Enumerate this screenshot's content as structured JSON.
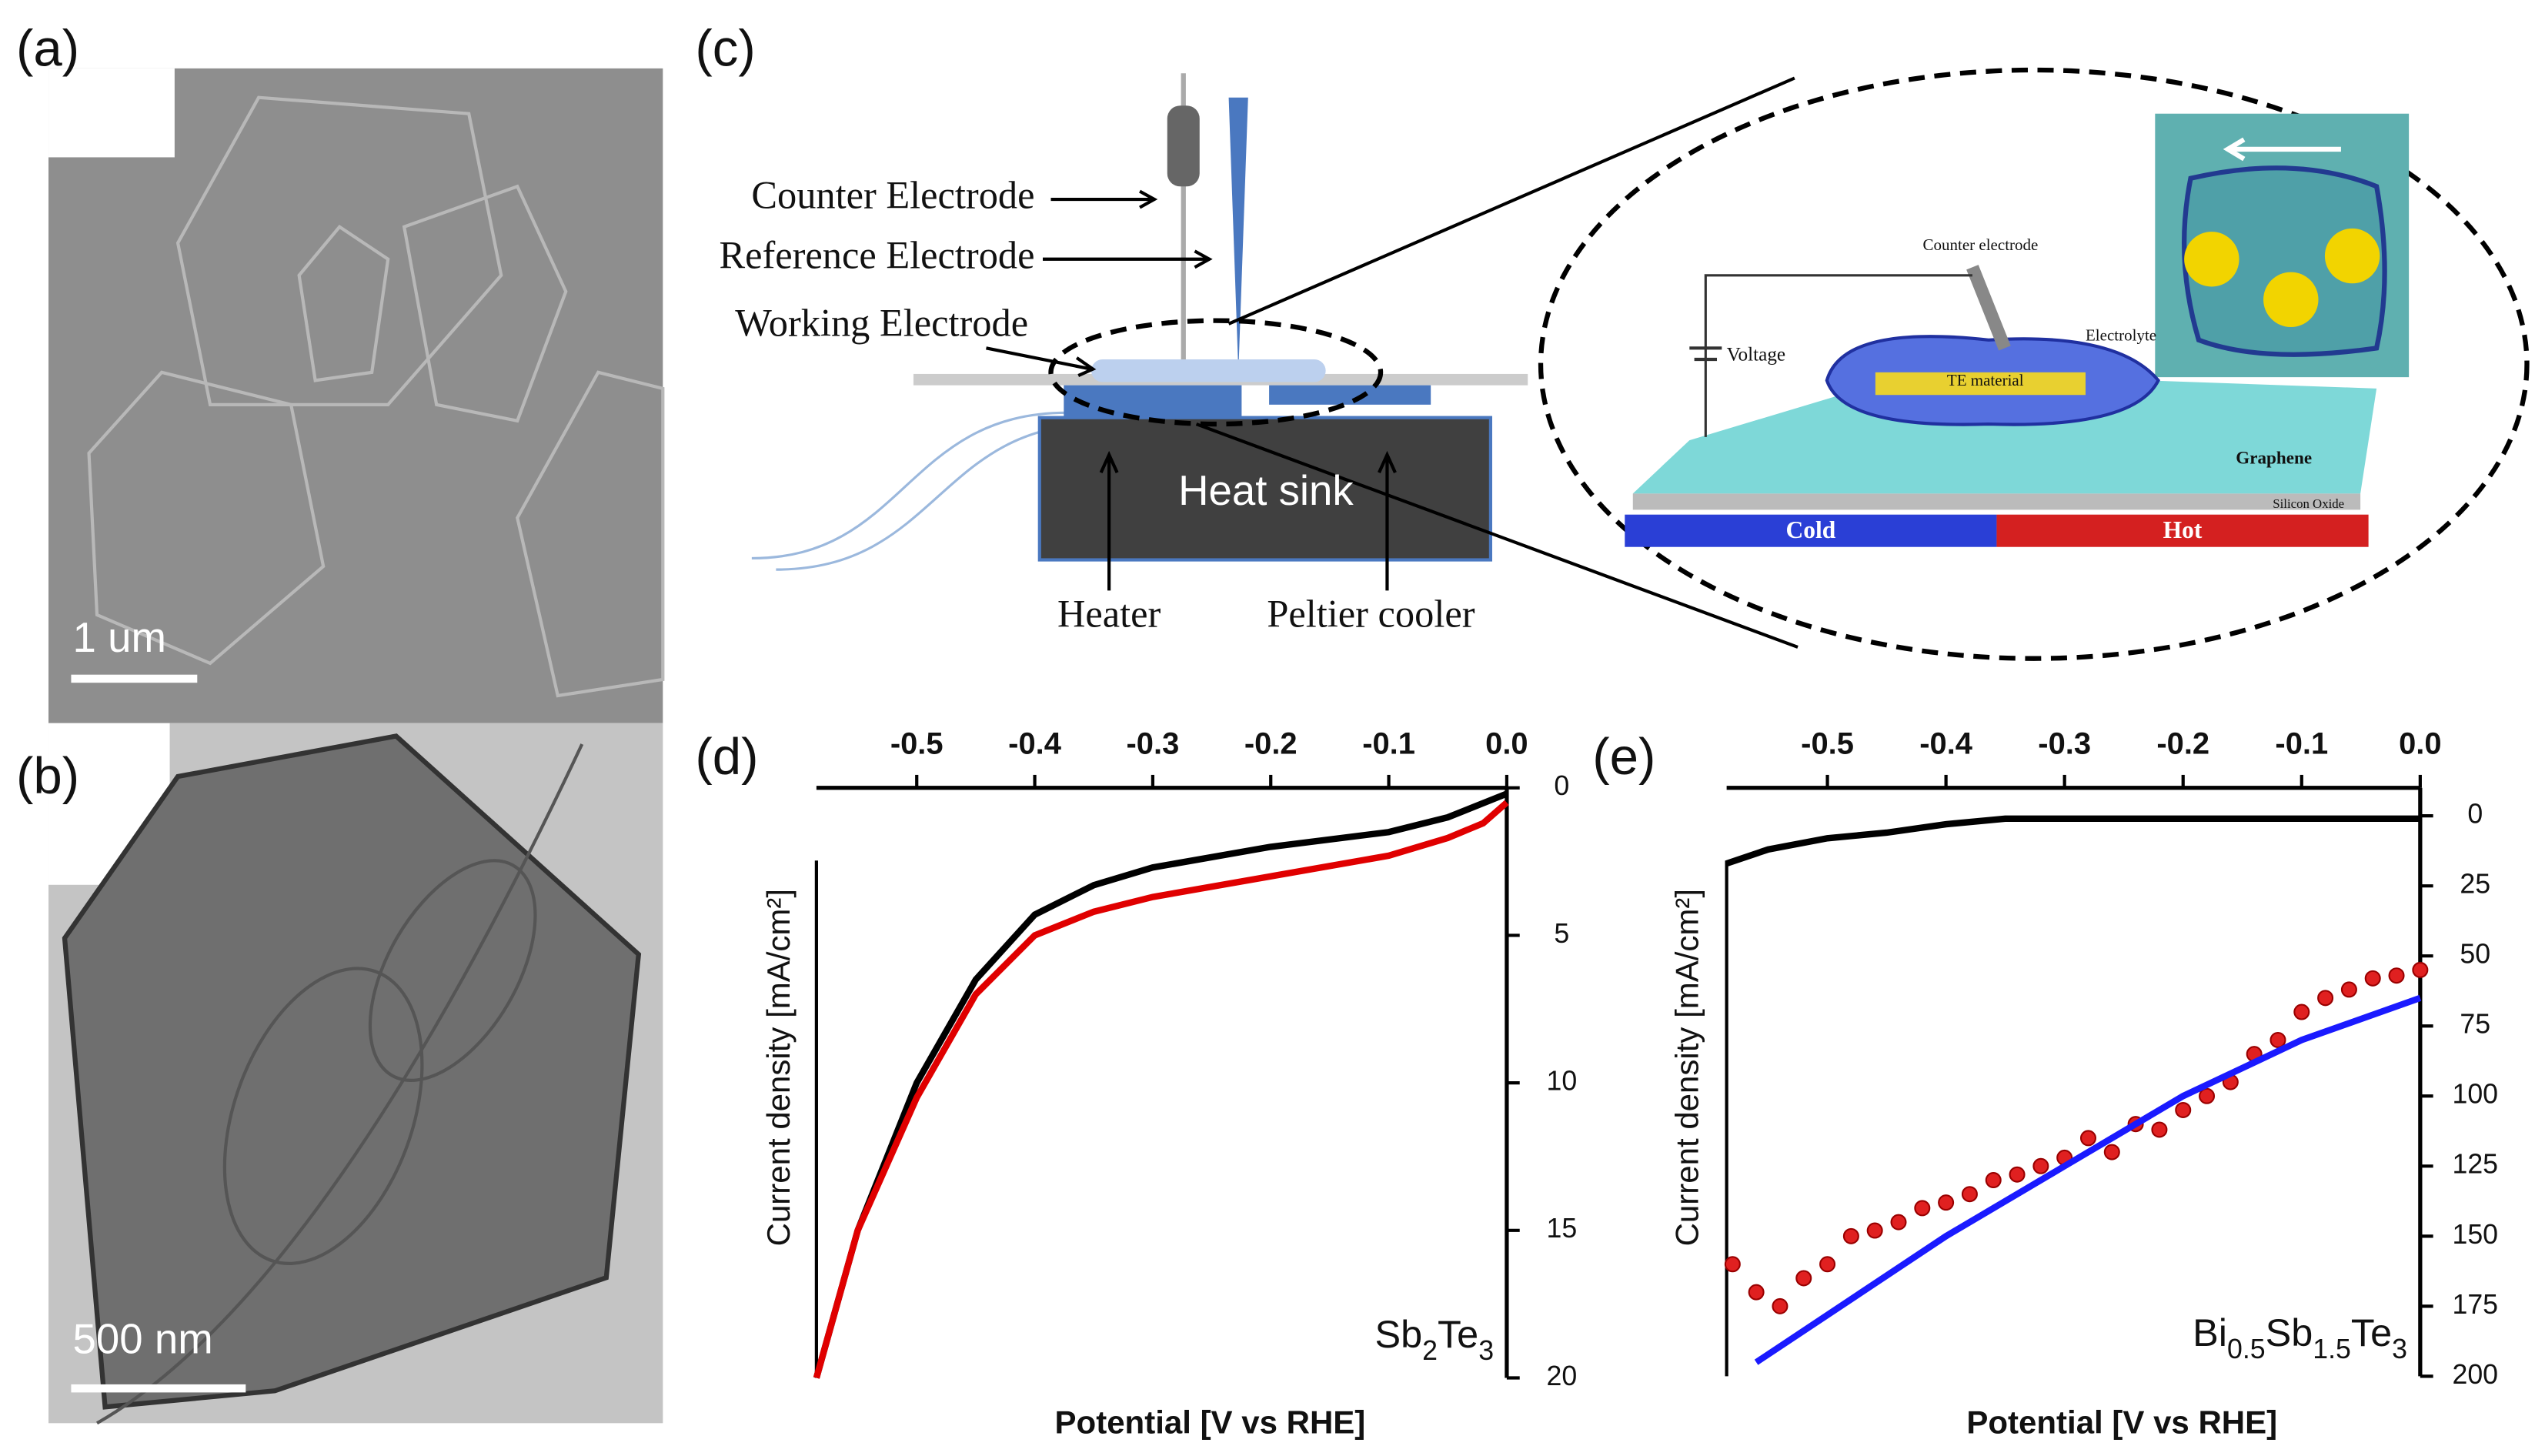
{
  "panels": {
    "a": {
      "label": "(a)",
      "scale_bar": "1 um"
    },
    "b": {
      "label": "(b)",
      "scale_bar": "500 nm"
    },
    "c": {
      "label": "(c)",
      "counter_electrode": "Counter Electrode",
      "reference_electrode": "Reference Electrode",
      "working_electrode": "Working Electrode",
      "heat_sink": "Heat sink",
      "heater": "Heater",
      "peltier": "Peltier cooler",
      "inset_counter": "Counter electrode",
      "electrolyte": "Electrolyte",
      "voltage": "Voltage",
      "te_material": "TE material",
      "graphene": "Graphene",
      "silicon_oxide": "Silicon Oxide",
      "cold": "Cold",
      "hot": "Hot"
    }
  },
  "chart_data": [
    {
      "type": "scatter",
      "panel_label": "(d)",
      "xlabel": "Potential [V vs RHE]",
      "ylabel": "Current density [mA/cm²]",
      "annotation_parts": [
        "Sb",
        "2",
        "Te",
        "3"
      ],
      "xaxis_side": "top",
      "yaxis_side": "right",
      "yaxis_reversed": true,
      "xlim": [
        -0.585,
        0
      ],
      "xticks": [
        -0.5,
        -0.4,
        -0.3,
        -0.2,
        -0.1,
        {
          "value": 0,
          "label": "0.0"
        }
      ],
      "ylim": [
        0,
        20
      ],
      "yticks": [
        0,
        5,
        10,
        15,
        20
      ],
      "series": [
        {
          "color": "#000000",
          "kind": "line",
          "x": [
            -0.585,
            -0.55,
            -0.5,
            -0.45,
            -0.4,
            -0.35,
            -0.3,
            -0.2,
            -0.1,
            -0.05,
            0
          ],
          "values": [
            20,
            15,
            10,
            6.5,
            4.3,
            3.3,
            2.7,
            2.0,
            1.5,
            1.0,
            0.2
          ]
        },
        {
          "color": "#e00000",
          "kind": "line",
          "x": [
            -0.585,
            -0.55,
            -0.5,
            -0.45,
            -0.4,
            -0.35,
            -0.3,
            -0.2,
            -0.1,
            -0.05,
            -0.02,
            0
          ],
          "values": [
            20,
            15,
            10.5,
            7,
            5,
            4.2,
            3.7,
            3.0,
            2.3,
            1.7,
            1.2,
            0.5
          ]
        }
      ]
    },
    {
      "type": "scatter",
      "panel_label": "(e)",
      "xlabel": "Potential [V vs RHE]",
      "ylabel": "Current density [mA/cm²]",
      "annotation_parts": [
        "Bi",
        "0.5",
        "Sb",
        "1.5",
        "Te",
        "3"
      ],
      "xaxis_side": "top",
      "yaxis_side": "right",
      "yaxis_reversed": true,
      "xlim": [
        -0.585,
        0
      ],
      "xticks": [
        -0.5,
        -0.4,
        -0.3,
        -0.2,
        -0.1,
        {
          "value": 0,
          "label": "0.0"
        }
      ],
      "ylim": [
        -10,
        200
      ],
      "yticks": [
        0,
        25,
        50,
        75,
        100,
        125,
        150,
        175,
        200
      ],
      "series": [
        {
          "color": "#000000",
          "kind": "line",
          "x": [
            -0.585,
            -0.55,
            -0.5,
            -0.45,
            -0.4,
            -0.35,
            -0.3,
            -0.15,
            0
          ],
          "values": [
            17,
            12,
            8,
            6,
            3,
            1,
            1,
            1,
            1
          ]
        },
        {
          "color": "#e02020",
          "kind": "scatter",
          "x": [
            -0.58,
            -0.56,
            -0.54,
            -0.52,
            -0.5,
            -0.48,
            -0.46,
            -0.44,
            -0.42,
            -0.4,
            -0.38,
            -0.36,
            -0.34,
            -0.32,
            -0.3,
            -0.28,
            -0.26,
            -0.24,
            -0.22,
            -0.2,
            -0.18,
            -0.16,
            -0.14,
            -0.12,
            -0.1,
            -0.08,
            -0.06,
            -0.04,
            -0.02,
            0
          ],
          "values": [
            160,
            170,
            175,
            165,
            160,
            150,
            148,
            145,
            140,
            138,
            135,
            130,
            128,
            125,
            122,
            115,
            120,
            110,
            112,
            105,
            100,
            95,
            85,
            80,
            70,
            65,
            62,
            58,
            57,
            55
          ]
        },
        {
          "color": "#1a1aff",
          "kind": "line",
          "x": [
            -0.56,
            -0.4,
            -0.3,
            -0.2,
            -0.1,
            0
          ],
          "values": [
            195,
            150,
            125,
            100,
            80,
            65
          ]
        }
      ]
    }
  ]
}
